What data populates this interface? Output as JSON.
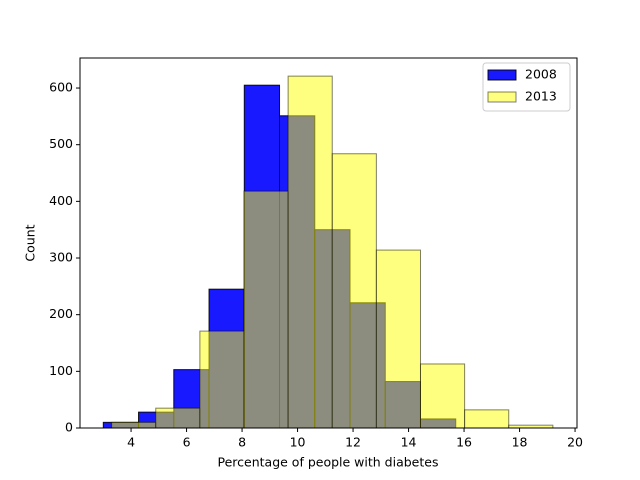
{
  "chart_data": {
    "type": "histogram",
    "xlabel": "Percentage of people with diabetes",
    "ylabel": "Count",
    "series": [
      {
        "name": "2008",
        "color": "#0000ff",
        "opacity": 0.9,
        "bins": [
          3.0,
          4.27,
          5.54,
          6.81,
          8.08,
          9.35,
          10.62,
          11.89,
          13.16,
          14.43,
          15.7
        ],
        "values": [
          10,
          28,
          103,
          245,
          605,
          551,
          350,
          221,
          82,
          16
        ]
      },
      {
        "name": "2013",
        "color": "#ffff00",
        "opacity": 0.5,
        "bins": [
          3.3,
          4.89,
          6.48,
          8.07,
          9.66,
          11.25,
          12.84,
          14.43,
          16.02,
          17.61,
          19.2
        ],
        "values": [
          10,
          35,
          171,
          418,
          621,
          484,
          314,
          113,
          32,
          5
        ]
      }
    ],
    "xlim": [
      2.16,
      20.07
    ],
    "xticks": [
      4,
      6,
      8,
      10,
      12,
      14,
      16,
      18,
      20
    ],
    "ylim": [
      0,
      653
    ],
    "yticks": [
      0,
      100,
      200,
      300,
      400,
      500,
      600
    ],
    "legend": "upper right"
  }
}
